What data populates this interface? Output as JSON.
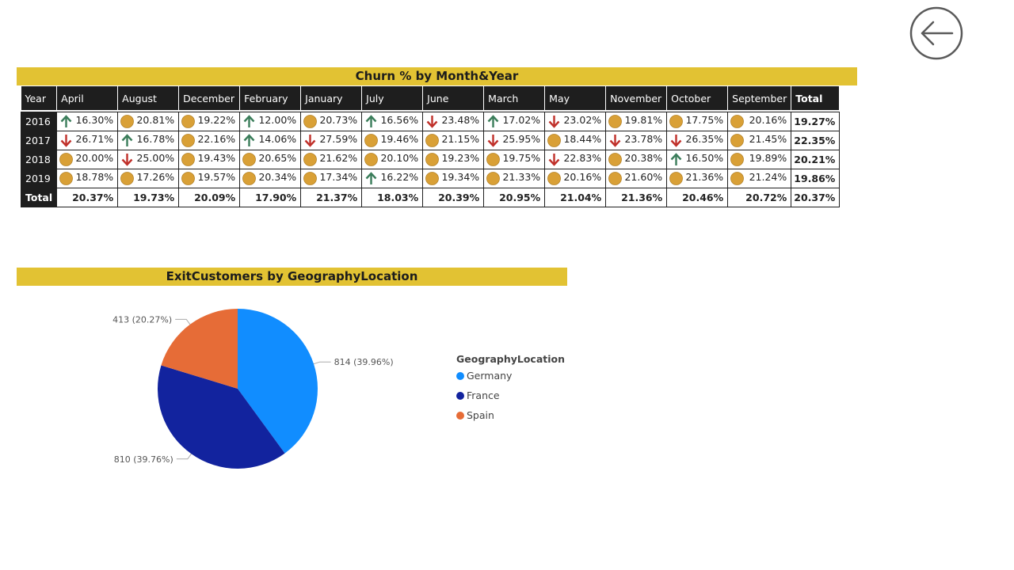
{
  "churn_table": {
    "title": "Churn % by Month&Year",
    "headers": [
      "Year",
      "April",
      "August",
      "December",
      "February",
      "January",
      "July",
      "June",
      "March",
      "May",
      "November",
      "October",
      "September",
      "Total"
    ],
    "rows": [
      {
        "year": "2016",
        "total": "19.27%",
        "cells": [
          {
            "v": "16.30%",
            "i": "up"
          },
          {
            "v": "20.81%",
            "i": "dot"
          },
          {
            "v": "19.22%",
            "i": "dot"
          },
          {
            "v": "12.00%",
            "i": "up"
          },
          {
            "v": "20.73%",
            "i": "dot"
          },
          {
            "v": "16.56%",
            "i": "up"
          },
          {
            "v": "23.48%",
            "i": "down"
          },
          {
            "v": "17.02%",
            "i": "up"
          },
          {
            "v": "23.02%",
            "i": "down"
          },
          {
            "v": "19.81%",
            "i": "dot"
          },
          {
            "v": "17.75%",
            "i": "dot"
          },
          {
            "v": "20.16%",
            "i": "dot"
          }
        ]
      },
      {
        "year": "2017",
        "total": "22.35%",
        "cells": [
          {
            "v": "26.71%",
            "i": "down"
          },
          {
            "v": "16.78%",
            "i": "up"
          },
          {
            "v": "22.16%",
            "i": "dot"
          },
          {
            "v": "14.06%",
            "i": "up"
          },
          {
            "v": "27.59%",
            "i": "down"
          },
          {
            "v": "19.46%",
            "i": "dot"
          },
          {
            "v": "21.15%",
            "i": "dot"
          },
          {
            "v": "25.95%",
            "i": "down"
          },
          {
            "v": "18.44%",
            "i": "dot"
          },
          {
            "v": "23.78%",
            "i": "down"
          },
          {
            "v": "26.35%",
            "i": "down"
          },
          {
            "v": "21.45%",
            "i": "dot"
          }
        ]
      },
      {
        "year": "2018",
        "total": "20.21%",
        "cells": [
          {
            "v": "20.00%",
            "i": "dot"
          },
          {
            "v": "25.00%",
            "i": "down"
          },
          {
            "v": "19.43%",
            "i": "dot"
          },
          {
            "v": "20.65%",
            "i": "dot"
          },
          {
            "v": "21.62%",
            "i": "dot"
          },
          {
            "v": "20.10%",
            "i": "dot"
          },
          {
            "v": "19.23%",
            "i": "dot"
          },
          {
            "v": "19.75%",
            "i": "dot"
          },
          {
            "v": "22.83%",
            "i": "down"
          },
          {
            "v": "20.38%",
            "i": "dot"
          },
          {
            "v": "16.50%",
            "i": "up"
          },
          {
            "v": "19.89%",
            "i": "dot"
          }
        ]
      },
      {
        "year": "2019",
        "total": "19.86%",
        "cells": [
          {
            "v": "18.78%",
            "i": "dot"
          },
          {
            "v": "17.26%",
            "i": "dot"
          },
          {
            "v": "19.57%",
            "i": "dot"
          },
          {
            "v": "20.34%",
            "i": "dot"
          },
          {
            "v": "17.34%",
            "i": "dot"
          },
          {
            "v": "16.22%",
            "i": "up"
          },
          {
            "v": "19.34%",
            "i": "dot"
          },
          {
            "v": "21.33%",
            "i": "dot"
          },
          {
            "v": "20.16%",
            "i": "dot"
          },
          {
            "v": "21.60%",
            "i": "dot"
          },
          {
            "v": "21.36%",
            "i": "dot"
          },
          {
            "v": "21.24%",
            "i": "dot"
          }
        ]
      }
    ],
    "total_row": {
      "label": "Total",
      "values": [
        "20.37%",
        "19.73%",
        "20.09%",
        "17.90%",
        "21.37%",
        "18.03%",
        "20.39%",
        "20.95%",
        "21.04%",
        "21.36%",
        "20.46%",
        "20.72%",
        "20.37%"
      ]
    }
  },
  "icon_colors": {
    "up": "#3a7d5a",
    "down": "#c0302a",
    "dot": "#d9a036"
  },
  "chart_data": {
    "type": "pie",
    "title": "ExitCustomers by GeographyLocation",
    "legend_title": "GeographyLocation",
    "legend_position": "right",
    "slices": [
      {
        "name": "Germany",
        "value": 814,
        "label": "814 (39.96%)",
        "color": "#118dff"
      },
      {
        "name": "France",
        "value": 810,
        "label": "810 (39.76%)",
        "color": "#12239e"
      },
      {
        "name": "Spain",
        "value": 413,
        "label": "413 (20.27%)",
        "color": "#e66c37"
      }
    ]
  },
  "nav": {
    "back_icon": "back-arrow-icon"
  }
}
